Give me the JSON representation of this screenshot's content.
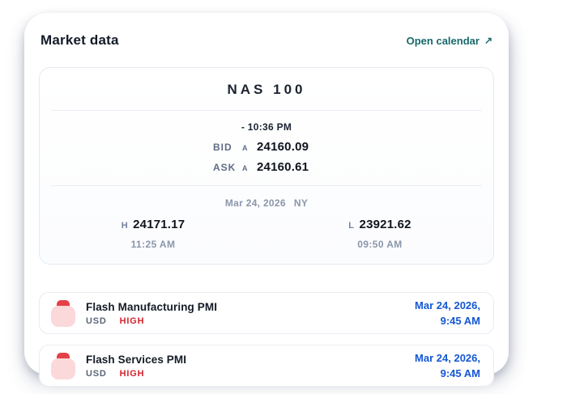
{
  "header": {
    "title": "Market data",
    "open_calendar_label": "Open calendar",
    "open_calendar_arrow": "↗"
  },
  "market_card": {
    "symbol": "NAS 100",
    "quote_time": "- 10:36 PM",
    "quotes": [
      {
        "label": "BID",
        "indicator": "A",
        "value": "24160.09"
      },
      {
        "label": "ASK",
        "indicator": "A",
        "value": "24160.61"
      }
    ],
    "date": "Mar 24, 2026",
    "exchange": "NY",
    "high": {
      "label": "H",
      "value": "24171.17",
      "time": "11:25 AM"
    },
    "low": {
      "label": "L",
      "value": "23921.62",
      "time": "09:50 AM"
    }
  },
  "events": [
    {
      "title": "Flash Manufacturing PMI",
      "currency": "USD",
      "impact": "HIGH",
      "date_line1": "Mar 24, 2026,",
      "date_line2": "9:45 AM",
      "icon": "calendar-event-icon"
    },
    {
      "title": "Flash Services PMI",
      "currency": "USD",
      "impact": "HIGH",
      "date_line1": "Mar 24, 2026,",
      "date_line2": "9:45 AM",
      "icon": "calendar-event-icon"
    }
  ],
  "colors": {
    "accent_teal": "#17696b",
    "accent_blue": "#1457d5",
    "impact_red": "#d3242f",
    "icon_red": "#e54046",
    "icon_pink": "#fbd8d9",
    "text_dark": "#131a28",
    "text_slate": "#5e6c86",
    "text_gray": "#8a96ab",
    "border_light": "#e8ecf2"
  }
}
